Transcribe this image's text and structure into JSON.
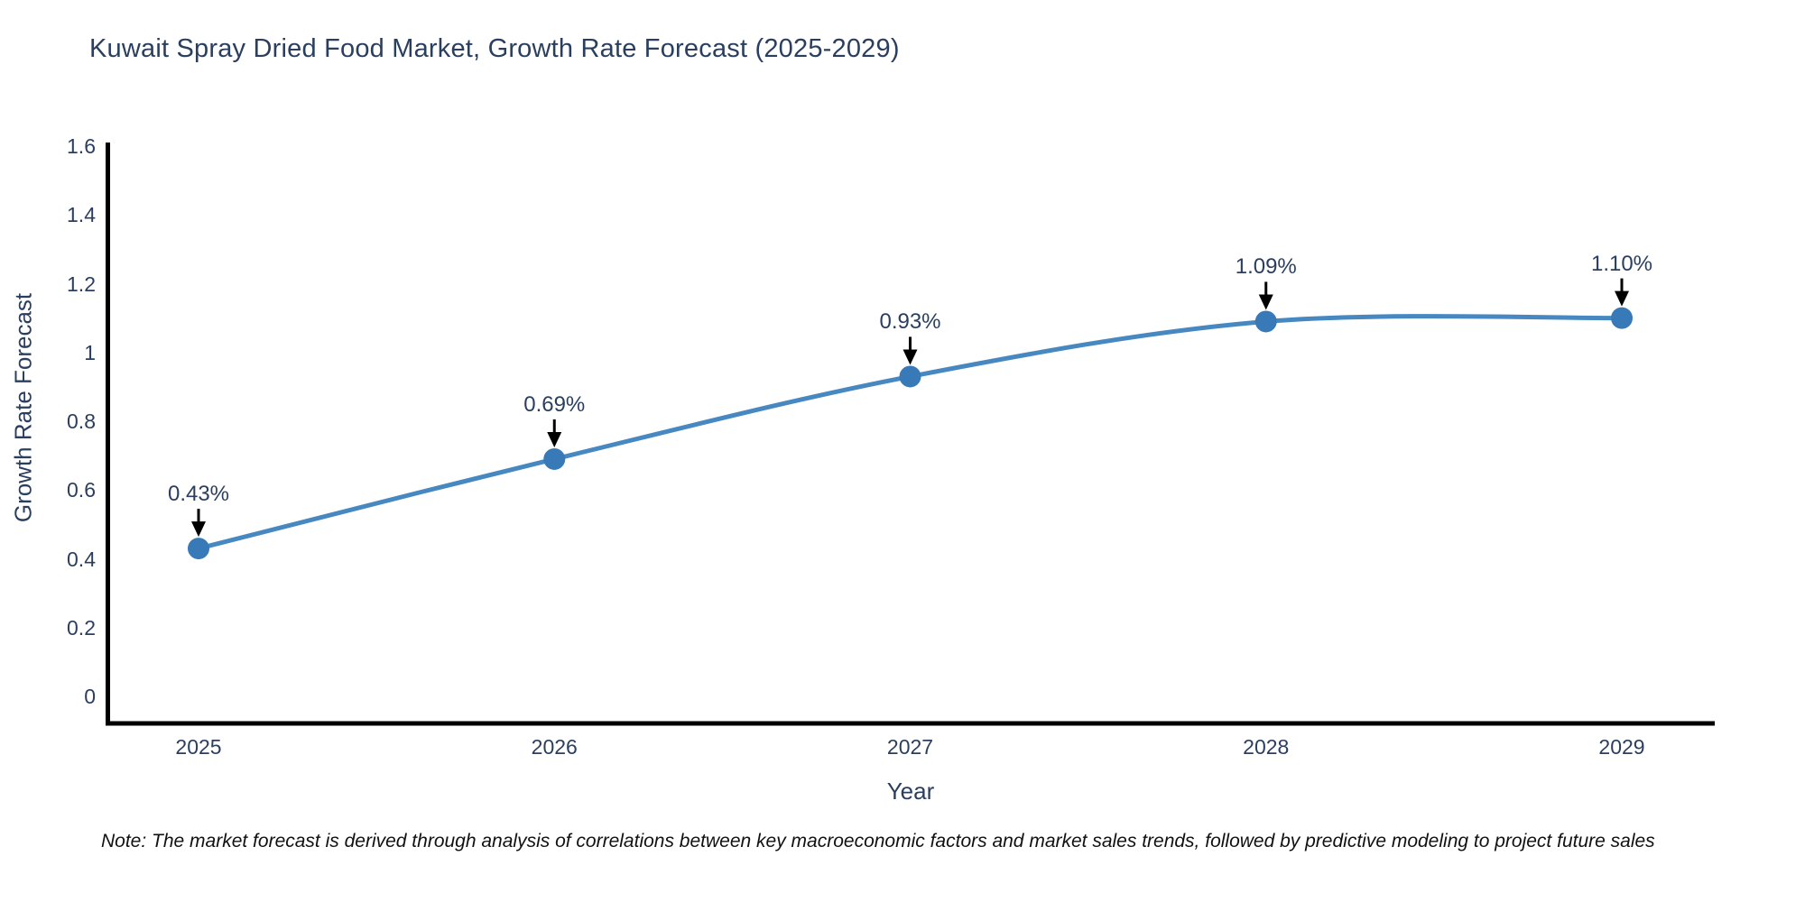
{
  "chart": {
    "title": "Kuwait Spray Dried Food Market, Growth Rate Forecast (2025-2029)",
    "note": "Note: The market forecast is derived through analysis of correlations between key macroeconomic factors and market sales trends, followed by predictive modeling to project future sales"
  },
  "chart_data": {
    "type": "line",
    "title": "Kuwait Spray Dried Food Market, Growth Rate Forecast (2025-2029)",
    "x": [
      2025,
      2026,
      2027,
      2028,
      2029
    ],
    "xticks": [
      "2025",
      "2026",
      "2027",
      "2028",
      "2029"
    ],
    "series": [
      {
        "name": "Growth Rate Forecast",
        "values": [
          0.43,
          0.69,
          0.93,
          1.09,
          1.1
        ]
      }
    ],
    "point_labels": [
      "0.43%",
      "0.69%",
      "0.93%",
      "1.09%",
      "1.10%"
    ],
    "xlabel": "Year",
    "ylabel": "Growth Rate Forecast",
    "ylim": [
      0,
      1.6
    ],
    "yticks": [
      "0",
      "0.2",
      "0.4",
      "0.6",
      "0.8",
      "1",
      "1.2",
      "1.4",
      "1.6"
    ],
    "grid": false,
    "legend": "none",
    "line_smoothing": "spline",
    "annotation_style": "label-above-with-down-arrow",
    "colors": {
      "line": "#4788c1",
      "marker": "#3879b8",
      "axis": "#000000",
      "text": "#2a3f5f",
      "annotation_arrow": "#000000",
      "note_text": "#111111",
      "background": "#ffffff"
    }
  }
}
